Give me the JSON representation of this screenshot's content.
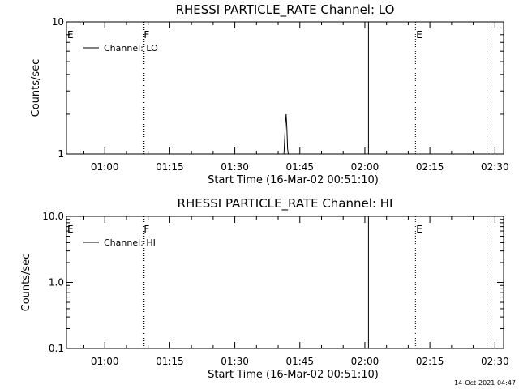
{
  "footer": "14-Oct-2021 04:47",
  "chart_data": [
    {
      "type": "line",
      "title": "RHESSI PARTICLE_RATE Channel: LO",
      "xlabel": "Start Time (16-Mar-02 00:51:10)",
      "ylabel": "Counts/sec",
      "y_scale": "log",
      "ylim": [
        1,
        10
      ],
      "y_ticks": [
        {
          "value": 1,
          "label": "1"
        },
        {
          "value": 10,
          "label": "10"
        }
      ],
      "xlim": [
        "00:51:10",
        "02:32:00"
      ],
      "x_ticks": [
        "01:00",
        "01:15",
        "01:30",
        "01:45",
        "02:00",
        "02:15",
        "02:30"
      ],
      "legend": {
        "position": "top-left",
        "entries": [
          "Channel: LO"
        ]
      },
      "series": [
        {
          "name": "Channel: LO",
          "x": [
            "01:41:20",
            "01:41:40",
            "01:41:50",
            "01:42:00",
            "01:42:10",
            "01:42:20"
          ],
          "y": [
            1,
            1.7,
            2.0,
            1.6,
            1.1,
            1
          ]
        }
      ],
      "markers": [
        {
          "time": "00:51:10",
          "label": "E",
          "style": "none"
        },
        {
          "time": "01:08:50",
          "label": "F",
          "style": "dotted"
        },
        {
          "time": "01:09:05",
          "label": "",
          "style": "dotted"
        },
        {
          "time": "02:00:50",
          "label": "",
          "style": "solid"
        },
        {
          "time": "02:11:40",
          "label": "E",
          "style": "dotted"
        },
        {
          "time": "02:28:10",
          "label": "",
          "style": "dotted"
        }
      ]
    },
    {
      "type": "line",
      "title": "RHESSI PARTICLE_RATE Channel: HI",
      "xlabel": "Start Time (16-Mar-02 00:51:10)",
      "ylabel": "Counts/sec",
      "y_scale": "log",
      "ylim": [
        0.1,
        10
      ],
      "y_ticks": [
        {
          "value": 0.1,
          "label": "0.1"
        },
        {
          "value": 1,
          "label": "1.0"
        },
        {
          "value": 10,
          "label": "10.0"
        }
      ],
      "xlim": [
        "00:51:10",
        "02:32:00"
      ],
      "x_ticks": [
        "01:00",
        "01:15",
        "01:30",
        "01:45",
        "02:00",
        "02:15",
        "02:30"
      ],
      "legend": {
        "position": "top-left",
        "entries": [
          "Channel: HI"
        ]
      },
      "series": [
        {
          "name": "Channel: HI",
          "x": [],
          "y": []
        }
      ],
      "markers": [
        {
          "time": "00:51:10",
          "label": "E",
          "style": "none"
        },
        {
          "time": "01:08:50",
          "label": "F",
          "style": "dotted"
        },
        {
          "time": "01:09:05",
          "label": "",
          "style": "dotted"
        },
        {
          "time": "02:00:50",
          "label": "",
          "style": "solid"
        },
        {
          "time": "02:11:40",
          "label": "E",
          "style": "dotted"
        },
        {
          "time": "02:28:10",
          "label": "",
          "style": "dotted"
        }
      ]
    }
  ]
}
